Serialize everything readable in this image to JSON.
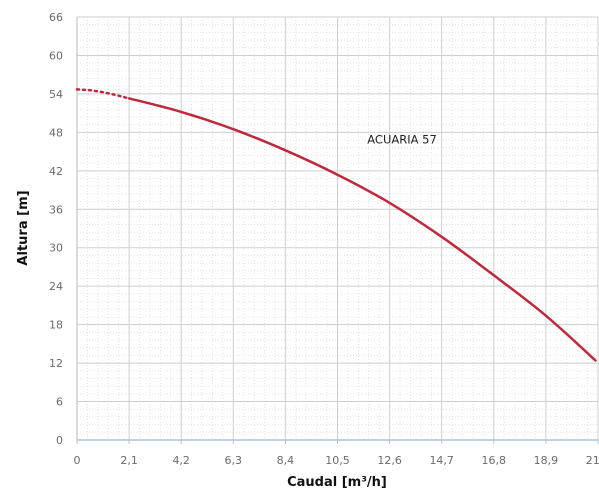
{
  "chart_data": {
    "type": "line",
    "title": "",
    "xlabel": "Caudal [m³/h]",
    "ylabel": "Altura [m]",
    "xlim": [
      0,
      21.0
    ],
    "ylim": [
      0,
      66
    ],
    "x_ticks": [
      "0",
      "2,1",
      "4,2",
      "6,3",
      "8,4",
      "10,5",
      "12,6",
      "14,7",
      "16,8",
      "18,9",
      "21,0"
    ],
    "y_ticks": [
      "0",
      "6",
      "12",
      "18",
      "24",
      "30",
      "36",
      "42",
      "48",
      "54",
      "60",
      "66"
    ],
    "grid": true,
    "minor_grid": true,
    "series": [
      {
        "name": "ACUARIA 57",
        "color": "#c0283c",
        "dotted_segment": {
          "x": [
            0,
            0.5,
            1.0,
            1.5,
            2.1
          ],
          "y": [
            54.7,
            54.6,
            54.3,
            53.9,
            53.3
          ]
        },
        "x": [
          2.1,
          4.2,
          6.3,
          8.4,
          10.5,
          12.6,
          14.7,
          16.8,
          18.9,
          20.9
        ],
        "y": [
          53.3,
          51.2,
          48.5,
          45.2,
          41.4,
          37.0,
          31.7,
          25.7,
          19.4,
          12.4
        ]
      }
    ],
    "annotations": [
      {
        "text": "ACUARIA 57",
        "x": 11.7,
        "y": 46.3
      }
    ]
  }
}
